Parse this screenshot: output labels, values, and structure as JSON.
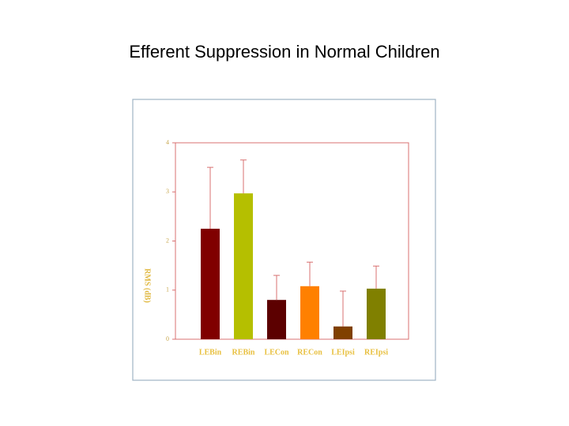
{
  "title": "Efferent Suppression in Normal Children",
  "chart_data": {
    "type": "bar",
    "y_label": "RMS (dB)",
    "categories": [
      "LEBin",
      "REBin",
      "LECon",
      "RECon",
      "LEIpsi",
      "REIpsi"
    ],
    "values": [
      2.25,
      2.97,
      0.8,
      1.08,
      0.26,
      1.03
    ],
    "errors": [
      1.25,
      0.68,
      0.5,
      0.49,
      0.72,
      0.46
    ],
    "colors": [
      "#800000",
      "#b5bf00",
      "#5c0000",
      "#ff8000",
      "#804000",
      "#808000"
    ],
    "ylim": [
      0,
      4
    ],
    "yticks": [
      0,
      1,
      2,
      3,
      4
    ]
  }
}
